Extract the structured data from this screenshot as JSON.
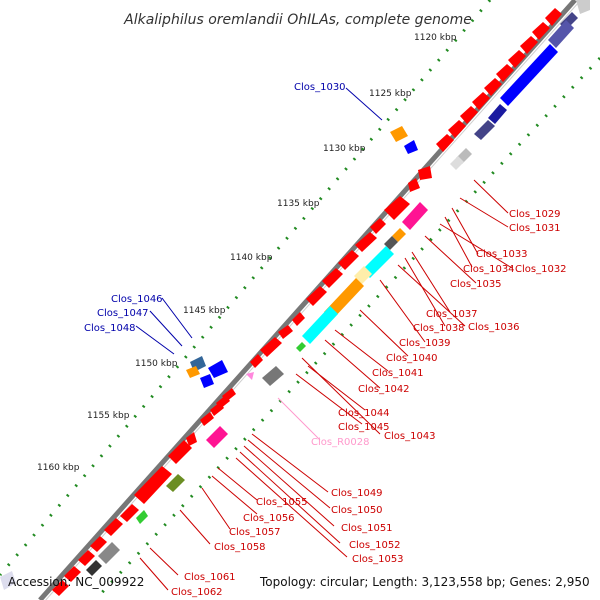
{
  "title": "Alkaliphilus oremlandii OhILAs, complete genome",
  "footer": {
    "accession": "Accession: NC_009922",
    "topology": "Topology: circular; Length: 3,123,558 bp; Genes: 2,950"
  },
  "colors": {
    "cds_forward": "#ff0000",
    "cds_reverse": "#0000ff",
    "label_forward": "#cc0000",
    "label_reverse": "#0000aa",
    "label_rna": "#ff99cc",
    "backbone": "#888888",
    "tick": "#228b22"
  },
  "ticks": [
    "1120 kbp",
    "1125 kbp",
    "1130 kbp",
    "1135 kbp",
    "1140 kbp",
    "1145 kbp",
    "1150 kbp",
    "1155 kbp",
    "1160 kbp"
  ],
  "labels": [
    {
      "text": "Clos_1029",
      "kind": "fwd"
    },
    {
      "text": "Clos_1031",
      "kind": "fwd"
    },
    {
      "text": "Clos_1033",
      "kind": "fwd"
    },
    {
      "text": "Clos_1034",
      "kind": "fwd"
    },
    {
      "text": "Clos_1032",
      "kind": "fwd"
    },
    {
      "text": "Clos_1035",
      "kind": "fwd"
    },
    {
      "text": "Clos_1037",
      "kind": "fwd"
    },
    {
      "text": "Clos_1038",
      "kind": "fwd"
    },
    {
      "text": "Clos_1036",
      "kind": "fwd"
    },
    {
      "text": "Clos_1039",
      "kind": "fwd"
    },
    {
      "text": "Clos_1040",
      "kind": "fwd"
    },
    {
      "text": "Clos_1041",
      "kind": "fwd"
    },
    {
      "text": "Clos_1042",
      "kind": "fwd"
    },
    {
      "text": "Clos_1044",
      "kind": "fwd"
    },
    {
      "text": "Clos_1045",
      "kind": "fwd"
    },
    {
      "text": "Clos_1043",
      "kind": "fwd"
    },
    {
      "text": "Clos_R0028",
      "kind": "rna"
    },
    {
      "text": "Clos_1049",
      "kind": "fwd"
    },
    {
      "text": "Clos_1055",
      "kind": "fwd"
    },
    {
      "text": "Clos_1050",
      "kind": "fwd"
    },
    {
      "text": "Clos_1056",
      "kind": "fwd"
    },
    {
      "text": "Clos_1051",
      "kind": "fwd"
    },
    {
      "text": "Clos_1057",
      "kind": "fwd"
    },
    {
      "text": "Clos_1052",
      "kind": "fwd"
    },
    {
      "text": "Clos_1058",
      "kind": "fwd"
    },
    {
      "text": "Clos_1053",
      "kind": "fwd"
    },
    {
      "text": "Clos_1061",
      "kind": "fwd"
    },
    {
      "text": "Clos_1062",
      "kind": "fwd"
    },
    {
      "text": "Clos_1030",
      "kind": "rev"
    },
    {
      "text": "Clos_1046",
      "kind": "rev"
    },
    {
      "text": "Clos_1047",
      "kind": "rev"
    },
    {
      "text": "Clos_1048",
      "kind": "rev"
    }
  ]
}
